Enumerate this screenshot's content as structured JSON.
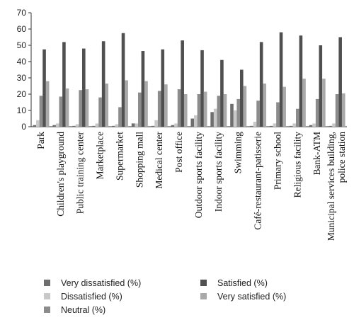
{
  "chart_data": {
    "type": "bar",
    "title": "",
    "xlabel": "",
    "ylabel": "",
    "ylim": [
      0,
      70
    ],
    "yticks": [
      0,
      10,
      20,
      30,
      40,
      50,
      60,
      70
    ],
    "grid": false,
    "legend_position": "bottom",
    "categories": [
      "Park",
      "Children's playground",
      "Public training center",
      "Marketplace",
      "Supermarket",
      "Shopping mall",
      "Medical center",
      "Post office",
      "Outdoor sports facility",
      "Indoor sports facility",
      "Swimming",
      "Café-restaurant-patisserie",
      "Primary school",
      "Religious facility",
      "Bank-ATM",
      "Municipal services building, police station"
    ],
    "series": [
      {
        "name": "Very dissatisfied (%)",
        "color": "#6e6e6e",
        "values": [
          1,
          1,
          0.5,
          0.5,
          0.5,
          2,
          0.5,
          1,
          5,
          9,
          14,
          0.5,
          0.5,
          0.5,
          1,
          0.5
        ]
      },
      {
        "name": "Dissatisfied (%)",
        "color": "#c8c8c8",
        "values": [
          4,
          2,
          1.5,
          2,
          1.5,
          2,
          4,
          2,
          7,
          11,
          10,
          3,
          2,
          2,
          2,
          2
        ]
      },
      {
        "name": "Neutral (%)",
        "color": "#8c8c8c",
        "values": [
          19,
          18.5,
          22.5,
          18,
          12,
          21,
          22,
          23,
          20,
          19,
          17,
          16,
          15,
          11,
          17,
          20
        ]
      },
      {
        "name": "Satisfied (%)",
        "color": "#505050",
        "values": [
          47.5,
          52,
          48,
          52.5,
          57.5,
          46.5,
          47.5,
          53,
          47,
          41,
          35,
          52,
          58,
          56,
          50,
          55
        ]
      },
      {
        "name": "Very satisfied (%)",
        "color": "#a9a9a9",
        "values": [
          28,
          23.5,
          23,
          26.5,
          28.5,
          28,
          26,
          20,
          21.5,
          20,
          25,
          26.5,
          24.5,
          29.5,
          29.5,
          20.5
        ]
      }
    ]
  }
}
